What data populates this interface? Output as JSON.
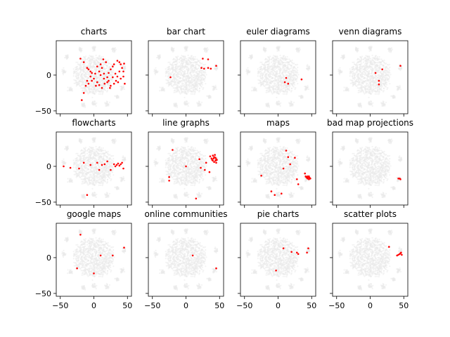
{
  "chart_data": {
    "type": "scatter",
    "layout": {
      "rows": 3,
      "cols": 4,
      "sharex": true,
      "sharey": true
    },
    "xlim": [
      -56,
      56
    ],
    "ylim": [
      -54,
      48
    ],
    "xticks": [
      -50,
      0,
      50
    ],
    "yticks": [
      -50,
      0
    ],
    "background_color": "#e9e9e9",
    "highlight_color": "#ff0000",
    "panels": [
      {
        "title": "charts",
        "points": [
          [
            -20,
            23
          ],
          [
            -15,
            18
          ],
          [
            -10,
            10
          ],
          [
            -8,
            8
          ],
          [
            -5,
            5
          ],
          [
            -3,
            3
          ],
          [
            -12,
            -15
          ],
          [
            -15,
            -25
          ],
          [
            -18,
            -35
          ],
          [
            -10,
            -8
          ],
          [
            -5,
            -2
          ],
          [
            0,
            -5
          ],
          [
            5,
            -10
          ],
          [
            2,
            2
          ],
          [
            8,
            5
          ],
          [
            10,
            0
          ],
          [
            15,
            -5
          ],
          [
            20,
            -10
          ],
          [
            22,
            3
          ],
          [
            25,
            8
          ],
          [
            28,
            12
          ],
          [
            30,
            15
          ],
          [
            35,
            20
          ],
          [
            40,
            15
          ],
          [
            45,
            16
          ],
          [
            42,
            10
          ],
          [
            38,
            5
          ],
          [
            35,
            -2
          ],
          [
            33,
            -8
          ],
          [
            30,
            -12
          ],
          [
            25,
            -15
          ],
          [
            20,
            -3
          ],
          [
            15,
            2
          ],
          [
            12,
            10
          ],
          [
            10,
            15
          ],
          [
            5,
            12
          ],
          [
            8,
            -14
          ],
          [
            18,
            18
          ],
          [
            22,
            -8
          ],
          [
            28,
            -3
          ],
          [
            32,
            2
          ],
          [
            36,
            -10
          ],
          [
            40,
            -5
          ],
          [
            44,
            5
          ],
          [
            46,
            -12
          ],
          [
            44,
            -2
          ],
          [
            -3,
            -8
          ],
          [
            12,
            -18
          ],
          [
            16,
            -12
          ],
          [
            24,
            -18
          ],
          [
            38,
            18
          ],
          [
            14,
            22
          ],
          [
            -8,
            -12
          ],
          [
            3,
            -15
          ]
        ]
      },
      {
        "title": "bar chart",
        "points": [
          [
            25,
            23
          ],
          [
            33,
            22
          ],
          [
            23,
            10
          ],
          [
            27,
            9
          ],
          [
            33,
            10
          ],
          [
            37,
            9
          ],
          [
            45,
            13
          ],
          [
            -23,
            -3
          ]
        ]
      },
      {
        "title": "euler diagrams",
        "points": [
          [
            12,
            -4
          ],
          [
            10,
            -10
          ],
          [
            15,
            -12
          ],
          [
            35,
            -6
          ]
        ]
      },
      {
        "title": "venn diagrams",
        "points": [
          [
            8,
            3
          ],
          [
            18,
            8
          ],
          [
            13,
            -8
          ],
          [
            13,
            -13
          ],
          [
            45,
            13
          ]
        ]
      },
      {
        "title": "flowcharts",
        "points": [
          [
            -45,
            0
          ],
          [
            -35,
            -2
          ],
          [
            -22,
            -3
          ],
          [
            -15,
            5
          ],
          [
            -5,
            2
          ],
          [
            5,
            5
          ],
          [
            8,
            -5
          ],
          [
            12,
            2
          ],
          [
            16,
            3
          ],
          [
            20,
            7
          ],
          [
            25,
            -5
          ],
          [
            30,
            3
          ],
          [
            32,
            0
          ],
          [
            34,
            2
          ],
          [
            36,
            4
          ],
          [
            38,
            1
          ],
          [
            40,
            3
          ],
          [
            42,
            5
          ],
          [
            44,
            -3
          ],
          [
            -10,
            -40
          ]
        ]
      },
      {
        "title": "line graphs",
        "points": [
          [
            -20,
            23
          ],
          [
            -25,
            -15
          ],
          [
            -25,
            -20
          ],
          [
            0,
            0
          ],
          [
            20,
            10
          ],
          [
            22,
            -2
          ],
          [
            28,
            -5
          ],
          [
            35,
            -8
          ],
          [
            40,
            15
          ],
          [
            42,
            13
          ],
          [
            44,
            12
          ],
          [
            45,
            10
          ],
          [
            40,
            8
          ],
          [
            42,
            6
          ],
          [
            44,
            8
          ],
          [
            46,
            9
          ],
          [
            38,
            11
          ],
          [
            36,
            14
          ],
          [
            43,
            16
          ],
          [
            41,
            11
          ],
          [
            45,
            5
          ],
          [
            39,
            9
          ],
          [
            15,
            -45
          ],
          [
            30,
            5
          ]
        ]
      },
      {
        "title": "maps",
        "points": [
          [
            -25,
            -13
          ],
          [
            -10,
            -35
          ],
          [
            -5,
            -40
          ],
          [
            5,
            -38
          ],
          [
            8,
            -3
          ],
          [
            12,
            22
          ],
          [
            15,
            13
          ],
          [
            18,
            3
          ],
          [
            25,
            12
          ],
          [
            28,
            -18
          ],
          [
            30,
            -25
          ],
          [
            40,
            -10
          ],
          [
            42,
            -15
          ],
          [
            43,
            -16
          ],
          [
            44,
            -17
          ],
          [
            45,
            -15
          ],
          [
            46,
            -18
          ],
          [
            47,
            -16
          ],
          [
            48,
            -17
          ],
          [
            41,
            -14
          ],
          [
            44,
            -14
          ],
          [
            46,
            -14
          ]
        ]
      },
      {
        "title": "bad map projections",
        "points": [
          [
            42,
            -17
          ],
          [
            44,
            -17
          ],
          [
            45,
            -18
          ]
        ]
      },
      {
        "title": "google maps",
        "points": [
          [
            -20,
            32
          ],
          [
            -25,
            -15
          ],
          [
            10,
            3
          ],
          [
            28,
            3
          ],
          [
            45,
            14
          ],
          [
            0,
            -22
          ]
        ]
      },
      {
        "title": "online communities",
        "points": [
          [
            10,
            3
          ],
          [
            45,
            -15
          ]
        ]
      },
      {
        "title": "pie charts",
        "points": [
          [
            -3,
            -18
          ],
          [
            8,
            13
          ],
          [
            20,
            8
          ],
          [
            28,
            7
          ],
          [
            30,
            5
          ],
          [
            45,
            13
          ],
          [
            43,
            7
          ]
        ]
      },
      {
        "title": "scatter plots",
        "points": [
          [
            28,
            15
          ],
          [
            40,
            3
          ],
          [
            42,
            4
          ],
          [
            44,
            5
          ],
          [
            45,
            6
          ],
          [
            46,
            7
          ],
          [
            47,
            4
          ]
        ]
      }
    ]
  }
}
